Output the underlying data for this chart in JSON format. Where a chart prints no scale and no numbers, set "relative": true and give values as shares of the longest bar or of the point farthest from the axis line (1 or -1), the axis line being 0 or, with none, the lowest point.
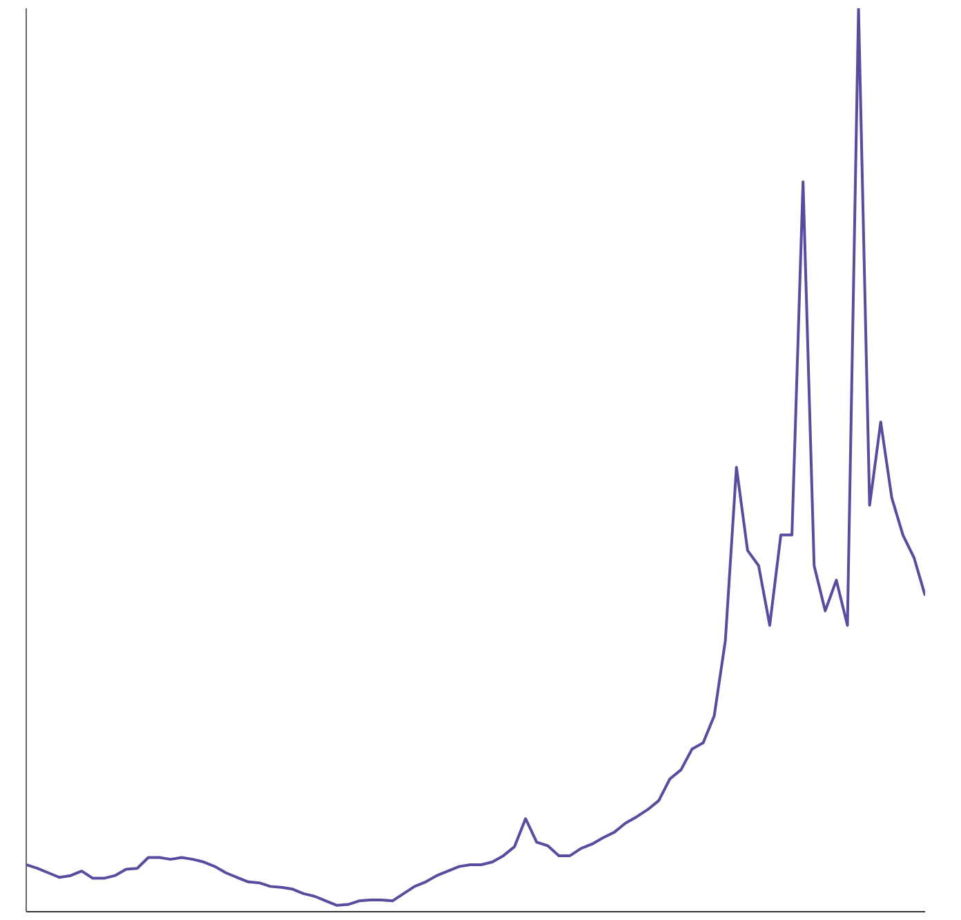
{
  "chart_data": {
    "type": "line",
    "relative": true,
    "categories": [
      null,
      null,
      null,
      null,
      null,
      null,
      null,
      null,
      null,
      null,
      null,
      null,
      null,
      null,
      null,
      null,
      null,
      null,
      null,
      null,
      null,
      null,
      null,
      null,
      null,
      null,
      null,
      null,
      null,
      null,
      null,
      null,
      null,
      null,
      null,
      null,
      null,
      null,
      null,
      null,
      null,
      null,
      null,
      null,
      null,
      null,
      null,
      null,
      null,
      null,
      null,
      null,
      null,
      null,
      null,
      null,
      null,
      null,
      null,
      null,
      null,
      null,
      null,
      null,
      null,
      null,
      null,
      null,
      null,
      null,
      null,
      null,
      null,
      null,
      null,
      null,
      null,
      null,
      null,
      null,
      null,
      null
    ],
    "series": [
      {
        "color": "#5b4a9e",
        "values": [
          0.052,
          0.048,
          0.043,
          0.038,
          0.04,
          0.045,
          0.037,
          0.037,
          0.04,
          0.047,
          0.048,
          0.06,
          0.06,
          0.058,
          0.06,
          0.058,
          0.055,
          0.05,
          0.043,
          0.038,
          0.033,
          0.032,
          0.028,
          0.027,
          0.025,
          0.02,
          0.017,
          0.012,
          0.007,
          0.008,
          0.012,
          0.013,
          0.013,
          0.012,
          0.02,
          0.028,
          0.033,
          0.04,
          0.045,
          0.05,
          0.052,
          0.052,
          0.055,
          0.062,
          0.072,
          0.103,
          0.077,
          0.073,
          0.062,
          0.062,
          0.07,
          0.075,
          0.082,
          0.088,
          0.098,
          0.105,
          0.113,
          0.123,
          0.147,
          0.157,
          0.18,
          0.187,
          0.217,
          0.3,
          0.492,
          0.4,
          0.383,
          0.317,
          0.417,
          0.417,
          0.808,
          0.383,
          0.333,
          0.367,
          0.317,
          1,
          0.45,
          0.542,
          0.458,
          0.417,
          0.392,
          0.35
        ]
      }
    ],
    "grid": false,
    "legend": false,
    "marker": "none",
    "line_style": "solid"
  }
}
